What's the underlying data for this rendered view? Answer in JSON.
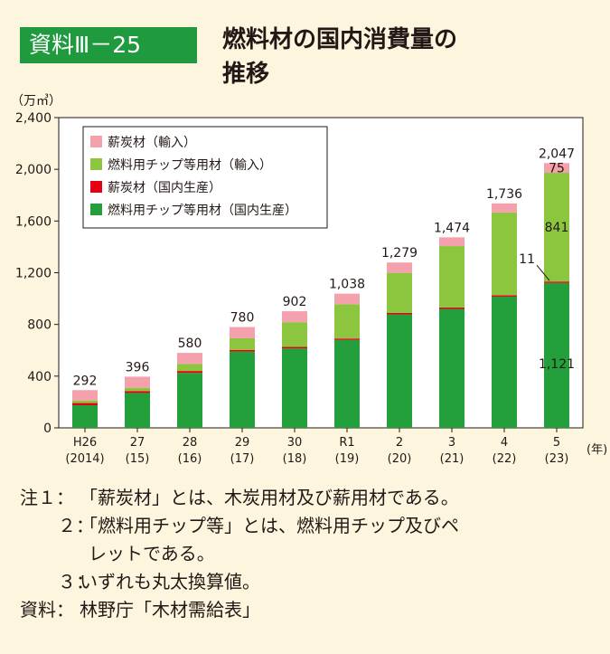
{
  "header": {
    "badge": "資料Ⅲ－25",
    "title_line1": "燃料材の国内消費量の",
    "title_line2": "推移"
  },
  "chart_data": {
    "type": "bar",
    "stacked": true,
    "unit_label": "（万㎥）",
    "x_unit_label": "(年)",
    "ylim": [
      0,
      2400
    ],
    "yticks": [
      "0",
      "400",
      "800",
      "1,200",
      "1,600",
      "2,000",
      "2,400"
    ],
    "categories": [
      {
        "top": "H26",
        "bottom": "(2014)"
      },
      {
        "top": "27",
        "bottom": "(15)"
      },
      {
        "top": "28",
        "bottom": "(16)"
      },
      {
        "top": "29",
        "bottom": "(17)"
      },
      {
        "top": "30",
        "bottom": "(18)"
      },
      {
        "top": "R1",
        "bottom": "(19)"
      },
      {
        "top": "2",
        "bottom": "(20)"
      },
      {
        "top": "3",
        "bottom": "(21)"
      },
      {
        "top": "4",
        "bottom": "(22)"
      },
      {
        "top": "5",
        "bottom": "(23)"
      }
    ],
    "totals": [
      "292",
      "396",
      "580",
      "780",
      "902",
      "1,038",
      "1,279",
      "1,474",
      "1,736",
      "2,047"
    ],
    "series": [
      {
        "name": "燃料用チップ等用材（国内生産）",
        "color": "#23a03c",
        "values": [
          175,
          270,
          425,
          590,
          615,
          680,
          878,
          920,
          1015,
          1121
        ]
      },
      {
        "name": "薪炭材（国内生産）",
        "color": "#e60012",
        "values": [
          17,
          15,
          15,
          13,
          12,
          11,
          11,
          11,
          11,
          11
        ]
      },
      {
        "name": "燃料用チップ等用材（輸入）",
        "color": "#8cc63f",
        "values": [
          20,
          25,
          55,
          90,
          190,
          265,
          310,
          475,
          640,
          841
        ]
      },
      {
        "name": "薪炭材（輸入）",
        "color": "#f4a0ad",
        "values": [
          80,
          86,
          85,
          87,
          85,
          82,
          80,
          68,
          70,
          75
        ]
      }
    ],
    "legend_order": [
      3,
      2,
      1,
      0
    ],
    "legend_placement": "top-left",
    "annotations": {
      "v841": "841",
      "v1121": "1,121",
      "v11": "11",
      "v75": "75"
    }
  },
  "notes": [
    {
      "label": "注１：",
      "text": "「薪炭材」とは、木炭用材及び薪用材である。"
    },
    {
      "label": "２：",
      "text": "「燃料用チップ等」とは、燃料用チップ及びペ"
    },
    {
      "label": "",
      "text": "レットである。"
    },
    {
      "label": "３：",
      "text": "いずれも丸太換算値。"
    },
    {
      "label": "資料：",
      "text": "林野庁「木材需給表」"
    }
  ]
}
